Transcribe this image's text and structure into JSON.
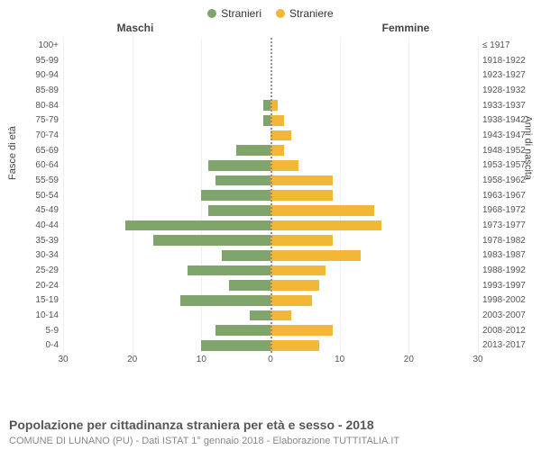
{
  "legend": {
    "male": {
      "label": "Stranieri",
      "color": "#7fa56d"
    },
    "female": {
      "label": "Straniere",
      "color": "#f2b736"
    }
  },
  "headers": {
    "male": "Maschi",
    "female": "Femmine"
  },
  "y_axis_left": "Fasce di età",
  "y_axis_right": "Anni di nascita",
  "chart": {
    "type": "population-pyramid",
    "xlim": 30,
    "xticks_left": [
      30,
      20,
      10,
      0
    ],
    "xticks_right": [
      10,
      20,
      30
    ],
    "background_color": "#ffffff",
    "grid_color": "#f0f0f0",
    "center_line_color": "#909090",
    "rows": [
      {
        "age": "100+",
        "birth": "≤ 1917",
        "m": 0,
        "f": 0
      },
      {
        "age": "95-99",
        "birth": "1918-1922",
        "m": 0,
        "f": 0
      },
      {
        "age": "90-94",
        "birth": "1923-1927",
        "m": 0,
        "f": 0
      },
      {
        "age": "85-89",
        "birth": "1928-1932",
        "m": 0,
        "f": 0
      },
      {
        "age": "80-84",
        "birth": "1933-1937",
        "m": 1,
        "f": 1
      },
      {
        "age": "75-79",
        "birth": "1938-1942",
        "m": 1,
        "f": 2
      },
      {
        "age": "70-74",
        "birth": "1943-1947",
        "m": 0,
        "f": 3
      },
      {
        "age": "65-69",
        "birth": "1948-1952",
        "m": 5,
        "f": 2
      },
      {
        "age": "60-64",
        "birth": "1953-1957",
        "m": 9,
        "f": 4
      },
      {
        "age": "55-59",
        "birth": "1958-1962",
        "m": 8,
        "f": 9
      },
      {
        "age": "50-54",
        "birth": "1963-1967",
        "m": 10,
        "f": 9
      },
      {
        "age": "45-49",
        "birth": "1968-1972",
        "m": 9,
        "f": 15
      },
      {
        "age": "40-44",
        "birth": "1973-1977",
        "m": 21,
        "f": 16
      },
      {
        "age": "35-39",
        "birth": "1978-1982",
        "m": 17,
        "f": 9
      },
      {
        "age": "30-34",
        "birth": "1983-1987",
        "m": 7,
        "f": 13
      },
      {
        "age": "25-29",
        "birth": "1988-1992",
        "m": 12,
        "f": 8
      },
      {
        "age": "20-24",
        "birth": "1993-1997",
        "m": 6,
        "f": 7
      },
      {
        "age": "15-19",
        "birth": "1998-2002",
        "m": 13,
        "f": 6
      },
      {
        "age": "10-14",
        "birth": "2003-2007",
        "m": 3,
        "f": 3
      },
      {
        "age": "5-9",
        "birth": "2008-2012",
        "m": 8,
        "f": 9
      },
      {
        "age": "0-4",
        "birth": "2013-2017",
        "m": 10,
        "f": 7
      }
    ]
  },
  "caption": "Popolazione per cittadinanza straniera per età e sesso - 2018",
  "subcaption": "COMUNE DI LUNANO (PU) - Dati ISTAT 1° gennaio 2018 - Elaborazione TUTTITALIA.IT"
}
